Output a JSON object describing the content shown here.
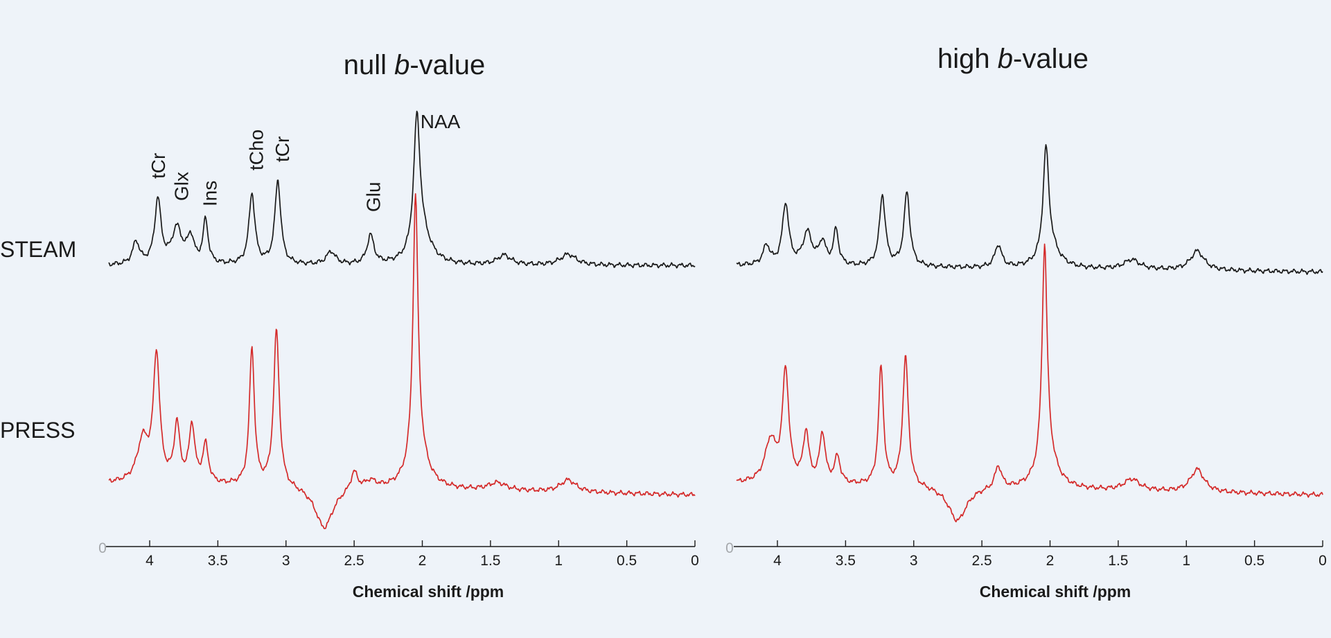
{
  "chart_data": {
    "type": "line",
    "panels": [
      {
        "title_prefix": "null ",
        "title_italic": "b",
        "title_suffix": "-value"
      },
      {
        "title_prefix": "high ",
        "title_italic": "b",
        "title_suffix": "-value"
      }
    ],
    "rows": [
      {
        "label": "STEAM",
        "color": "#1a1a1a"
      },
      {
        "label": "PRESS",
        "color": "#d42a2a"
      }
    ],
    "xlabel": "Chemical shift /ppm",
    "xlim": [
      4.3,
      0
    ],
    "xticks": [
      4,
      3.5,
      3,
      2.5,
      2,
      1.5,
      1,
      0.5,
      0
    ],
    "xtick_labels": [
      "4",
      "3.5",
      "3",
      "2.5",
      "2",
      "1.5",
      "1",
      "0.5",
      "0"
    ],
    "axis_origin_label": "0",
    "peak_labels": [
      {
        "text": "tCr",
        "ppm": 3.94
      },
      {
        "text": "Glx",
        "ppm": 3.77
      },
      {
        "text": "Ins",
        "ppm": 3.56
      },
      {
        "text": "tCho",
        "ppm": 3.22
      },
      {
        "text": "tCr",
        "ppm": 3.03
      },
      {
        "text": "Glu",
        "ppm": 2.36
      },
      {
        "text": "NAA",
        "ppm": 2.01,
        "horizontal": true
      }
    ],
    "series": [
      {
        "name": "STEAM null b-value",
        "panel": 0,
        "row": 0,
        "peaks": [
          {
            "ppm": 4.1,
            "height": 0.35,
            "width": 0.03
          },
          {
            "ppm": 3.94,
            "height": 1.0,
            "width": 0.028
          },
          {
            "ppm": 3.8,
            "height": 0.55,
            "width": 0.045
          },
          {
            "ppm": 3.7,
            "height": 0.4,
            "width": 0.03
          },
          {
            "ppm": 3.59,
            "height": 0.68,
            "width": 0.022
          },
          {
            "ppm": 3.25,
            "height": 1.1,
            "width": 0.026
          },
          {
            "ppm": 3.06,
            "height": 1.3,
            "width": 0.026
          },
          {
            "ppm": 2.67,
            "height": 0.2,
            "width": 0.04
          },
          {
            "ppm": 2.38,
            "height": 0.45,
            "width": 0.03
          },
          {
            "ppm": 2.04,
            "height": 2.05,
            "width": 0.028
          },
          {
            "ppm": 2.0,
            "height": 0.4,
            "width": 0.08
          },
          {
            "ppm": 1.4,
            "height": 0.15,
            "width": 0.06
          },
          {
            "ppm": 0.93,
            "height": 0.17,
            "width": 0.07
          }
        ],
        "baseline_start": 0.05,
        "baseline_end": 0.05
      },
      {
        "name": "PRESS null b-value",
        "panel": 0,
        "row": 1,
        "peaks": [
          {
            "ppm": 4.05,
            "height": 0.55,
            "width": 0.05
          },
          {
            "ppm": 3.95,
            "height": 1.65,
            "width": 0.028
          },
          {
            "ppm": 3.8,
            "height": 0.75,
            "width": 0.025
          },
          {
            "ppm": 3.69,
            "height": 0.75,
            "width": 0.025
          },
          {
            "ppm": 3.59,
            "height": 0.5,
            "width": 0.025
          },
          {
            "ppm": 3.25,
            "height": 1.8,
            "width": 0.022
          },
          {
            "ppm": 3.07,
            "height": 2.05,
            "width": 0.025
          },
          {
            "ppm": 2.72,
            "height": -0.55,
            "width": 0.08
          },
          {
            "ppm": 2.5,
            "height": 0.25,
            "width": 0.03
          },
          {
            "ppm": 2.38,
            "height": 0.1,
            "width": 0.05
          },
          {
            "ppm": 2.05,
            "height": 3.45,
            "width": 0.022
          },
          {
            "ppm": 2.03,
            "height": 0.45,
            "width": 0.08
          },
          {
            "ppm": 1.45,
            "height": 0.1,
            "width": 0.08
          },
          {
            "ppm": 0.93,
            "height": 0.16,
            "width": 0.07
          }
        ],
        "baseline_start": 0.0,
        "baseline_end": -0.15
      },
      {
        "name": "STEAM high b-value",
        "panel": 1,
        "row": 0,
        "peaks": [
          {
            "ppm": 4.08,
            "height": 0.3,
            "width": 0.03
          },
          {
            "ppm": 3.94,
            "height": 0.95,
            "width": 0.028
          },
          {
            "ppm": 3.78,
            "height": 0.5,
            "width": 0.04
          },
          {
            "ppm": 3.67,
            "height": 0.35,
            "width": 0.03
          },
          {
            "ppm": 3.57,
            "height": 0.55,
            "width": 0.022
          },
          {
            "ppm": 3.23,
            "height": 1.1,
            "width": 0.026
          },
          {
            "ppm": 3.05,
            "height": 1.15,
            "width": 0.026
          },
          {
            "ppm": 2.38,
            "height": 0.35,
            "width": 0.03
          },
          {
            "ppm": 2.03,
            "height": 1.65,
            "width": 0.025
          },
          {
            "ppm": 2.0,
            "height": 0.3,
            "width": 0.08
          },
          {
            "ppm": 1.4,
            "height": 0.15,
            "width": 0.07
          },
          {
            "ppm": 0.92,
            "height": 0.3,
            "width": 0.06
          }
        ],
        "baseline_start": 0.05,
        "baseline_end": -0.05
      },
      {
        "name": "PRESS high b-value",
        "panel": 1,
        "row": 1,
        "peaks": [
          {
            "ppm": 4.05,
            "height": 0.55,
            "width": 0.05
          },
          {
            "ppm": 3.94,
            "height": 1.45,
            "width": 0.028
          },
          {
            "ppm": 3.79,
            "height": 0.65,
            "width": 0.025
          },
          {
            "ppm": 3.67,
            "height": 0.65,
            "width": 0.025
          },
          {
            "ppm": 3.56,
            "height": 0.35,
            "width": 0.025
          },
          {
            "ppm": 3.24,
            "height": 1.55,
            "width": 0.022
          },
          {
            "ppm": 3.06,
            "height": 1.7,
            "width": 0.025
          },
          {
            "ppm": 2.68,
            "height": -0.45,
            "width": 0.08
          },
          {
            "ppm": 2.38,
            "height": 0.3,
            "width": 0.03
          },
          {
            "ppm": 2.04,
            "height": 2.85,
            "width": 0.022
          },
          {
            "ppm": 2.02,
            "height": 0.4,
            "width": 0.08
          },
          {
            "ppm": 1.4,
            "height": 0.15,
            "width": 0.07
          },
          {
            "ppm": 0.92,
            "height": 0.3,
            "width": 0.06
          }
        ],
        "baseline_start": 0.0,
        "baseline_end": -0.15
      }
    ]
  }
}
